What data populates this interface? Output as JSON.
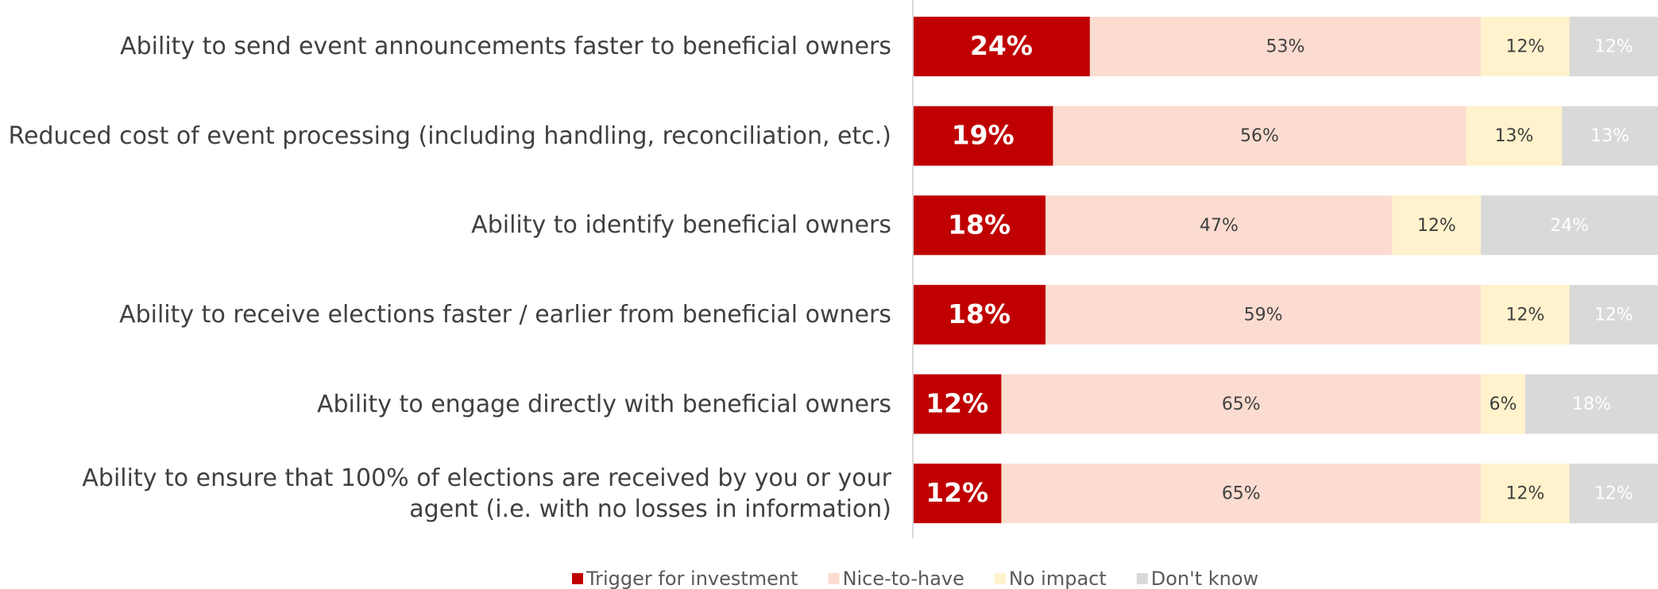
{
  "chart_data": {
    "type": "stacked_bar_horizontal",
    "categories": [
      "Ability to send event announcements faster to beneficial owners",
      "Reduced cost of event processing (including handling, reconciliation, etc.)",
      "Ability to identify beneficial owners",
      "Ability to receive elections faster / earlier from beneficial owners",
      "Ability to engage directly with beneficial owners",
      "Ability to ensure that 100% of elections are received by you or your agent (i.e. with no losses in information)"
    ],
    "series": [
      {
        "name": "Trigger for investment",
        "color": "#c00000",
        "label_color": "#ffffff",
        "values": [
          24,
          19,
          18,
          18,
          12,
          12
        ],
        "value_labels": [
          "24%",
          "19%",
          "18%",
          "18%",
          "12%",
          "12%"
        ]
      },
      {
        "name": "Nice-to-have",
        "color": "#fcdcd0",
        "label_color": "#404040",
        "values": [
          53,
          56,
          47,
          59,
          65,
          65
        ],
        "value_labels": [
          "53%",
          "56%",
          "47%",
          "59%",
          "65%",
          "65%"
        ]
      },
      {
        "name": "No impact",
        "color": "#fff2cc",
        "label_color": "#404040",
        "values": [
          12,
          13,
          12,
          12,
          6,
          12
        ],
        "value_labels": [
          "12%",
          "13%",
          "12%",
          "12%",
          "6%",
          "12%"
        ]
      },
      {
        "name": "Don't know",
        "color": "#d9d9d9",
        "label_color": "#ffffff",
        "values": [
          12,
          13,
          24,
          12,
          18,
          12
        ],
        "value_labels": [
          "12%",
          "13%",
          "24%",
          "12%",
          "18%",
          "12%"
        ]
      }
    ],
    "legend": "bottom"
  }
}
